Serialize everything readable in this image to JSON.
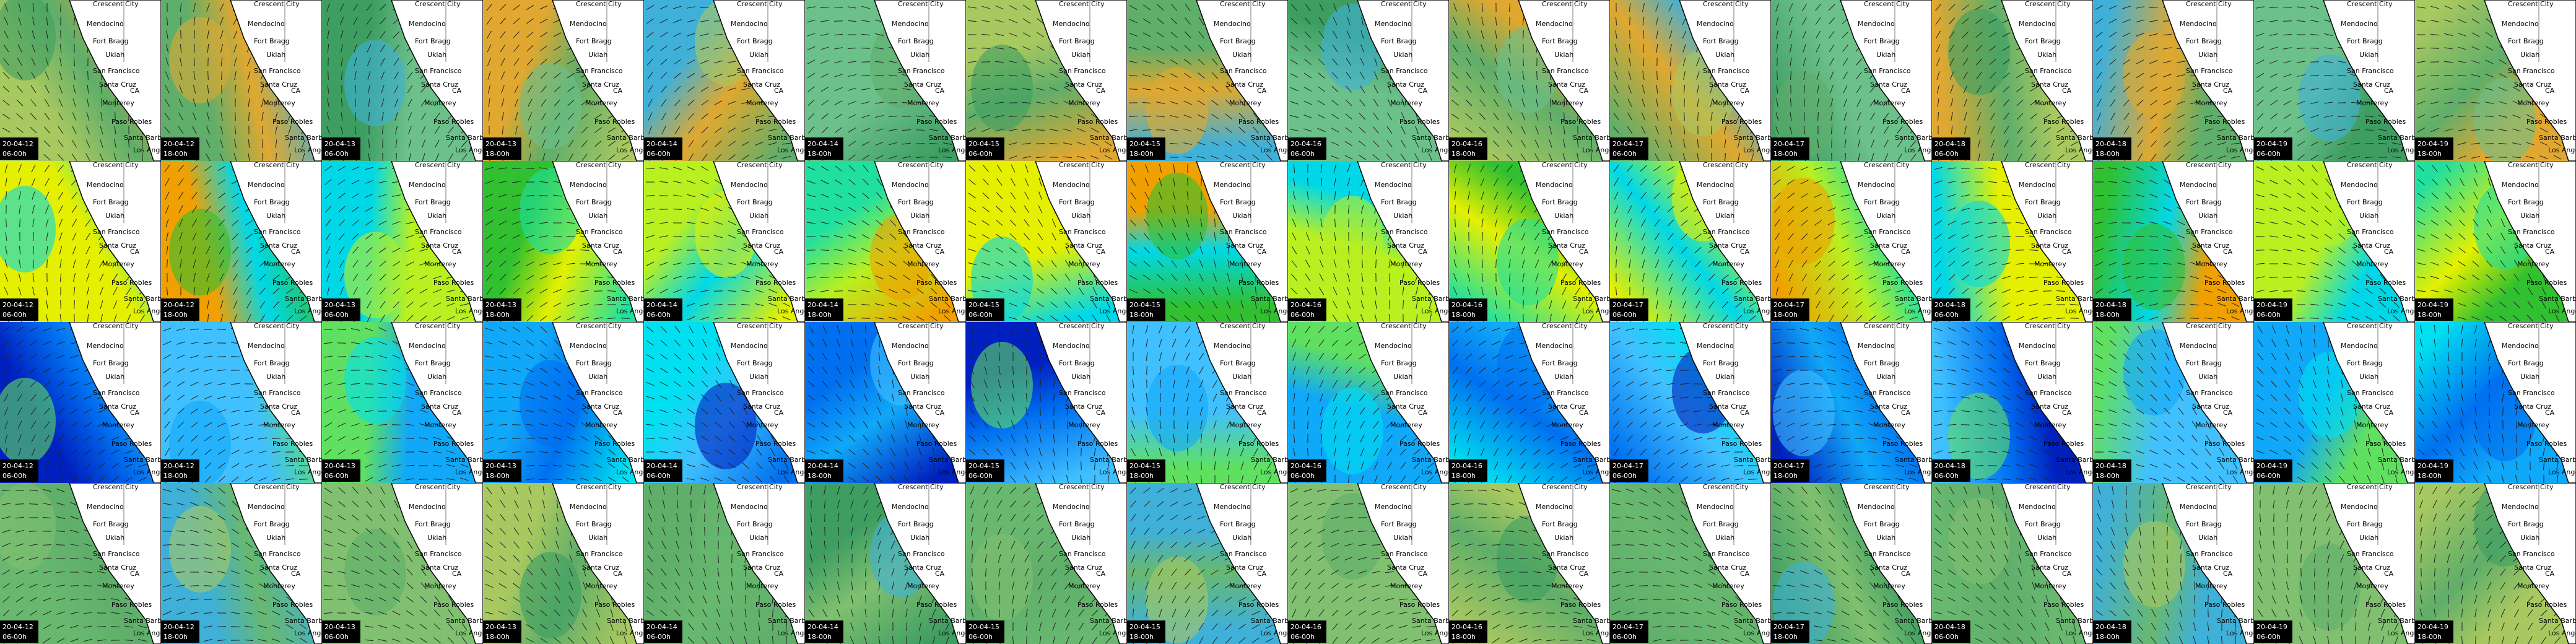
{
  "columns": [
    {
      "date": "20-04-12",
      "time": "06-00h"
    },
    {
      "date": "20-04-12",
      "time": "18-00h"
    },
    {
      "date": "20-04-13",
      "time": "06-00h"
    },
    {
      "date": "20-04-13",
      "time": "18-00h"
    },
    {
      "date": "20-04-14",
      "time": "06-00h"
    },
    {
      "date": "20-04-14",
      "time": "18-00h"
    },
    {
      "date": "20-04-15",
      "time": "06-00h"
    },
    {
      "date": "20-04-15",
      "time": "18-00h"
    },
    {
      "date": "20-04-16",
      "time": "06-00h"
    },
    {
      "date": "20-04-16",
      "time": "18-00h"
    },
    {
      "date": "20-04-17",
      "time": "06-00h"
    },
    {
      "date": "20-04-17",
      "time": "18-00h"
    },
    {
      "date": "20-04-18",
      "time": "06-00h"
    },
    {
      "date": "20-04-18",
      "time": "18-00h"
    },
    {
      "date": "20-04-19",
      "time": "06-00h"
    },
    {
      "date": "20-04-19",
      "time": "18-00h"
    }
  ],
  "places": [
    "Crescent City",
    "Mendocino",
    "Fort Bragg",
    "Ukiah",
    "San Francisco",
    "Santa Cruz",
    "CA",
    "Monterey",
    "Paso Robles",
    "Santa Barbara",
    "Los Angeles"
  ],
  "rows": [
    {
      "palette": [
        "#a8c860",
        "#5fae6a",
        "#3e9e62",
        "#e0a830",
        "#3fb0d8",
        "#6cc08a"
      ]
    },
    {
      "palette": [
        "#20e0a0",
        "#e4f000",
        "#f0a000",
        "#00d8e8",
        "#30c030",
        "#b8f020"
      ]
    },
    {
      "palette": [
        "#00e0f0",
        "#0070f0",
        "#0020c0",
        "#40c0ff",
        "#60e060",
        "#10a8f8"
      ]
    },
    {
      "palette": [
        "#a8c860",
        "#5fae6a",
        "#3e9e62",
        "#68b870",
        "#3fb0d8",
        "#80c070"
      ]
    }
  ]
}
